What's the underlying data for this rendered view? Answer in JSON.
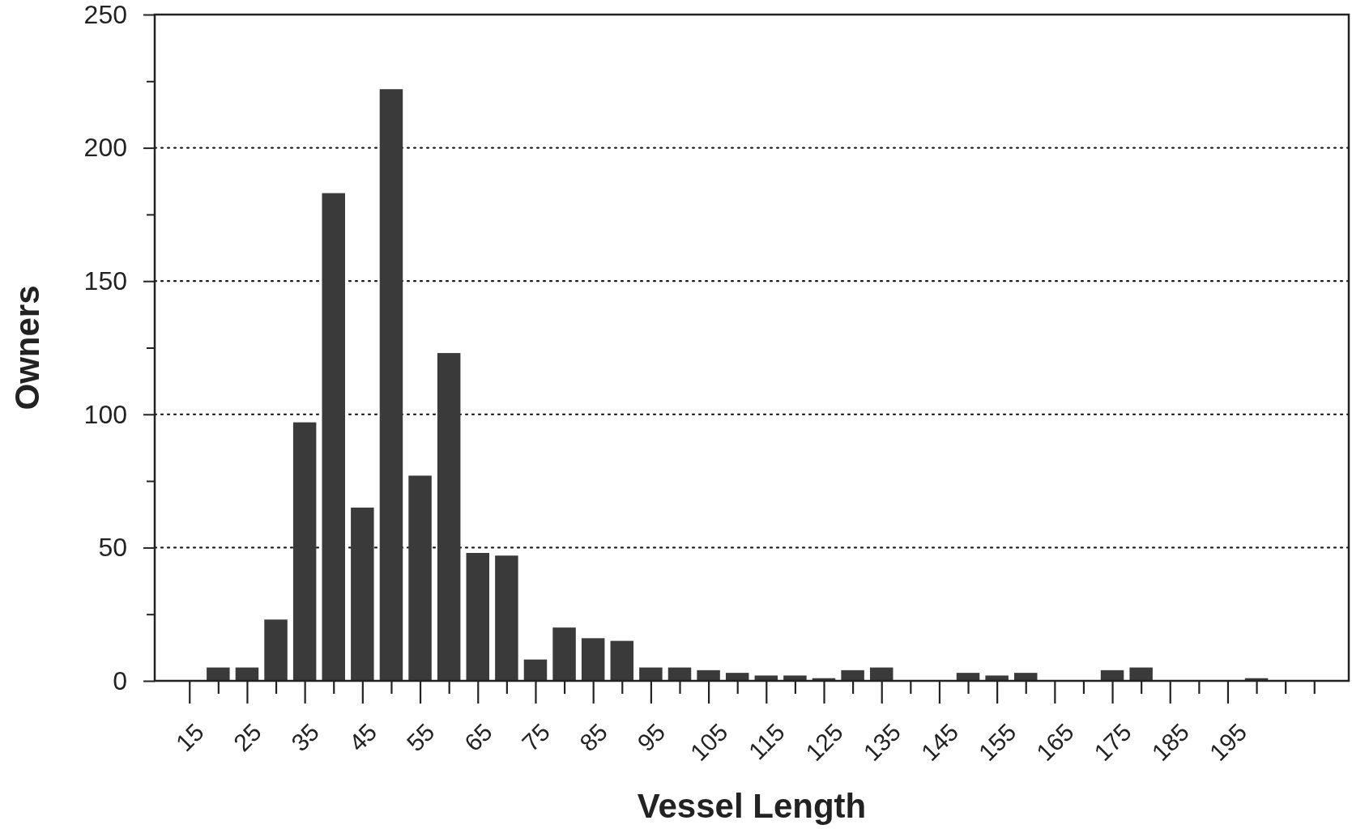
{
  "chart_data": {
    "type": "bar",
    "xlabel": "Vessel Length",
    "ylabel": "Owners",
    "color": "#3a3a3a",
    "x": [
      20,
      25,
      30,
      35,
      40,
      45,
      50,
      55,
      60,
      65,
      70,
      75,
      80,
      85,
      90,
      95,
      100,
      105,
      110,
      115,
      120,
      125,
      130,
      135,
      140,
      145,
      150,
      155,
      160,
      165,
      170,
      175,
      180,
      185,
      190,
      195,
      200
    ],
    "values": [
      5,
      5,
      23,
      97,
      183,
      65,
      222,
      77,
      123,
      48,
      47,
      8,
      20,
      16,
      15,
      5,
      5,
      4,
      3,
      2,
      2,
      1,
      4,
      5,
      0,
      0,
      3,
      2,
      3,
      0,
      0,
      4,
      5,
      0,
      0,
      0,
      1
    ],
    "xlim": [
      9,
      216
    ],
    "xticks": [
      15,
      {
        "value": 20,
        "label": null
      },
      25,
      {
        "value": 30,
        "label": null
      },
      35,
      {
        "value": 40,
        "label": null
      },
      45,
      {
        "value": 50,
        "label": null
      },
      55,
      {
        "value": 60,
        "label": null
      },
      65,
      {
        "value": 70,
        "label": null
      },
      75,
      {
        "value": 80,
        "label": null
      },
      85,
      {
        "value": 90,
        "label": null
      },
      95,
      {
        "value": 100,
        "label": null
      },
      105,
      {
        "value": 110,
        "label": null
      },
      115,
      {
        "value": 120,
        "label": null
      },
      125,
      {
        "value": 130,
        "label": null
      },
      135,
      {
        "value": 140,
        "label": null
      },
      145,
      {
        "value": 150,
        "label": null
      },
      155,
      {
        "value": 160,
        "label": null
      },
      165,
      {
        "value": 170,
        "label": null
      },
      175,
      {
        "value": 180,
        "label": null
      },
      185,
      {
        "value": 190,
        "label": null
      },
      195,
      {
        "value": 200,
        "label": null
      },
      {
        "value": 205,
        "label": null
      },
      {
        "value": 210,
        "label": null
      }
    ],
    "ylim": [
      0,
      250
    ],
    "yticks": [
      0,
      {
        "value": 25,
        "label": null
      },
      50,
      {
        "value": 75,
        "label": null
      },
      100,
      {
        "value": 125,
        "label": null
      },
      150,
      {
        "value": 175,
        "label": null
      },
      200,
      {
        "value": 225,
        "label": null
      },
      250
    ],
    "grid": "y"
  }
}
